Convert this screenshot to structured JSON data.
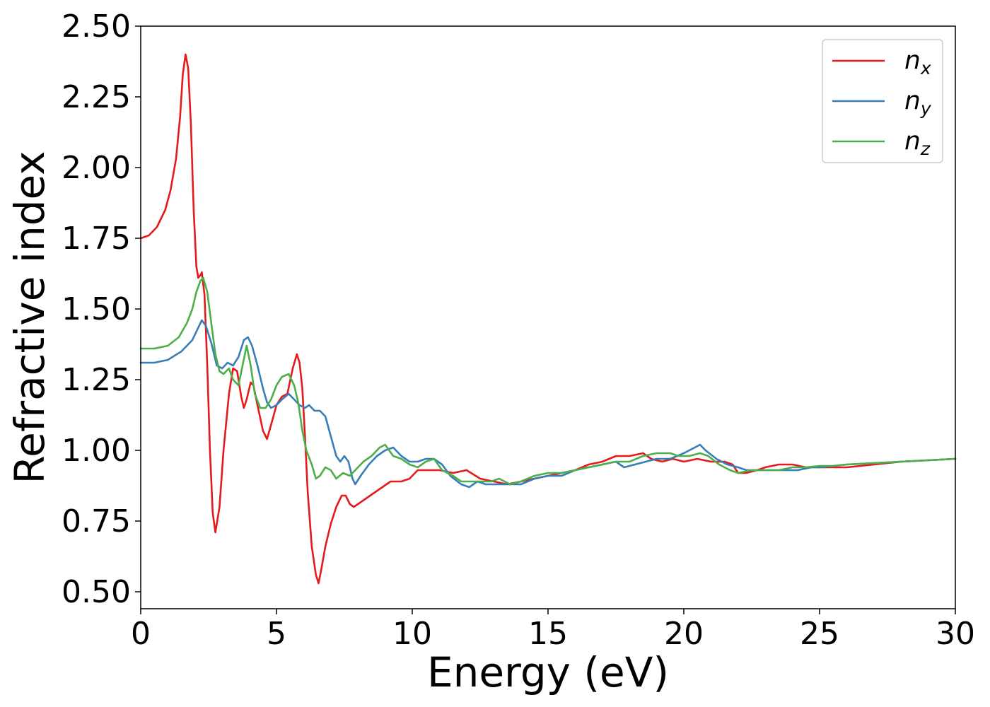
{
  "chart_data": {
    "type": "line",
    "title": "",
    "xlabel": "Energy (eV)",
    "ylabel": "Refractive index",
    "xlim": [
      0,
      30
    ],
    "ylim": [
      0.44,
      2.5
    ],
    "xticks": [
      0,
      5,
      10,
      15,
      20,
      25,
      30
    ],
    "xtick_labels": [
      "0",
      "5",
      "10",
      "15",
      "20",
      "25",
      "30"
    ],
    "yticks": [
      0.5,
      0.75,
      1.0,
      1.25,
      1.5,
      1.75,
      2.0,
      2.25,
      2.5
    ],
    "ytick_labels": [
      "0.50",
      "0.75",
      "1.00",
      "1.25",
      "1.50",
      "1.75",
      "2.00",
      "2.25",
      "2.50"
    ],
    "grid": false,
    "legend_position": "top-right",
    "series": [
      {
        "name": "n_x",
        "label_main": "n",
        "label_sub": "x",
        "color": "#e41a1c",
        "points": [
          [
            0,
            1.75
          ],
          [
            0.3,
            1.76
          ],
          [
            0.6,
            1.79
          ],
          [
            0.9,
            1.85
          ],
          [
            1.1,
            1.92
          ],
          [
            1.3,
            2.03
          ],
          [
            1.45,
            2.18
          ],
          [
            1.55,
            2.33
          ],
          [
            1.65,
            2.4
          ],
          [
            1.75,
            2.35
          ],
          [
            1.85,
            2.15
          ],
          [
            1.95,
            1.85
          ],
          [
            2.05,
            1.65
          ],
          [
            2.12,
            1.61
          ],
          [
            2.2,
            1.62
          ],
          [
            2.25,
            1.63
          ],
          [
            2.35,
            1.55
          ],
          [
            2.45,
            1.3
          ],
          [
            2.55,
            1.0
          ],
          [
            2.65,
            0.78
          ],
          [
            2.75,
            0.71
          ],
          [
            2.9,
            0.8
          ],
          [
            3.05,
            1.0
          ],
          [
            3.25,
            1.2
          ],
          [
            3.4,
            1.29
          ],
          [
            3.55,
            1.28
          ],
          [
            3.7,
            1.19
          ],
          [
            3.8,
            1.15
          ],
          [
            3.9,
            1.18
          ],
          [
            4.05,
            1.24
          ],
          [
            4.15,
            1.23
          ],
          [
            4.3,
            1.16
          ],
          [
            4.5,
            1.07
          ],
          [
            4.65,
            1.04
          ],
          [
            4.8,
            1.09
          ],
          [
            5.0,
            1.16
          ],
          [
            5.2,
            1.19
          ],
          [
            5.4,
            1.2
          ],
          [
            5.6,
            1.29
          ],
          [
            5.75,
            1.34
          ],
          [
            5.85,
            1.31
          ],
          [
            5.95,
            1.22
          ],
          [
            6.05,
            1.05
          ],
          [
            6.15,
            0.85
          ],
          [
            6.3,
            0.66
          ],
          [
            6.45,
            0.56
          ],
          [
            6.55,
            0.53
          ],
          [
            6.65,
            0.58
          ],
          [
            6.8,
            0.66
          ],
          [
            7.0,
            0.74
          ],
          [
            7.2,
            0.8
          ],
          [
            7.4,
            0.84
          ],
          [
            7.55,
            0.84
          ],
          [
            7.7,
            0.81
          ],
          [
            7.85,
            0.8
          ],
          [
            8.0,
            0.81
          ],
          [
            8.3,
            0.83
          ],
          [
            8.6,
            0.85
          ],
          [
            8.9,
            0.87
          ],
          [
            9.2,
            0.89
          ],
          [
            9.6,
            0.89
          ],
          [
            9.9,
            0.9
          ],
          [
            10.2,
            0.93
          ],
          [
            10.6,
            0.93
          ],
          [
            11.0,
            0.93
          ],
          [
            11.5,
            0.92
          ],
          [
            12.0,
            0.93
          ],
          [
            12.5,
            0.9
          ],
          [
            13.0,
            0.89
          ],
          [
            13.5,
            0.88
          ],
          [
            14.0,
            0.89
          ],
          [
            14.5,
            0.9
          ],
          [
            15.0,
            0.91
          ],
          [
            15.5,
            0.92
          ],
          [
            16.0,
            0.93
          ],
          [
            16.5,
            0.95
          ],
          [
            17.0,
            0.96
          ],
          [
            17.5,
            0.98
          ],
          [
            18.0,
            0.98
          ],
          [
            18.5,
            0.99
          ],
          [
            18.8,
            0.97
          ],
          [
            19.2,
            0.96
          ],
          [
            19.6,
            0.97
          ],
          [
            20.0,
            0.96
          ],
          [
            20.5,
            0.97
          ],
          [
            21.0,
            0.96
          ],
          [
            21.5,
            0.96
          ],
          [
            21.8,
            0.95
          ],
          [
            22.0,
            0.92
          ],
          [
            22.3,
            0.92
          ],
          [
            22.7,
            0.93
          ],
          [
            23.0,
            0.94
          ],
          [
            23.5,
            0.95
          ],
          [
            24.0,
            0.95
          ],
          [
            24.5,
            0.94
          ],
          [
            25.0,
            0.94
          ],
          [
            25.5,
            0.94
          ],
          [
            26.0,
            0.94
          ],
          [
            27.0,
            0.95
          ],
          [
            28.0,
            0.96
          ],
          [
            29.0,
            0.965
          ],
          [
            30.0,
            0.97
          ]
        ]
      },
      {
        "name": "n_y",
        "label_main": "n",
        "label_sub": "y",
        "color": "#377eb8",
        "points": [
          [
            0,
            1.31
          ],
          [
            0.5,
            1.31
          ],
          [
            1.0,
            1.32
          ],
          [
            1.5,
            1.35
          ],
          [
            1.9,
            1.39
          ],
          [
            2.1,
            1.43
          ],
          [
            2.25,
            1.46
          ],
          [
            2.4,
            1.44
          ],
          [
            2.6,
            1.38
          ],
          [
            2.8,
            1.3
          ],
          [
            3.0,
            1.29
          ],
          [
            3.2,
            1.31
          ],
          [
            3.4,
            1.3
          ],
          [
            3.6,
            1.33
          ],
          [
            3.8,
            1.39
          ],
          [
            3.95,
            1.4
          ],
          [
            4.1,
            1.37
          ],
          [
            4.3,
            1.3
          ],
          [
            4.5,
            1.22
          ],
          [
            4.65,
            1.17
          ],
          [
            4.8,
            1.15
          ],
          [
            5.0,
            1.16
          ],
          [
            5.2,
            1.18
          ],
          [
            5.45,
            1.2
          ],
          [
            5.65,
            1.18
          ],
          [
            5.85,
            1.16
          ],
          [
            6.05,
            1.15
          ],
          [
            6.2,
            1.16
          ],
          [
            6.4,
            1.14
          ],
          [
            6.6,
            1.14
          ],
          [
            6.8,
            1.12
          ],
          [
            7.0,
            1.05
          ],
          [
            7.2,
            0.98
          ],
          [
            7.35,
            0.96
          ],
          [
            7.5,
            0.98
          ],
          [
            7.65,
            0.96
          ],
          [
            7.8,
            0.9
          ],
          [
            7.9,
            0.88
          ],
          [
            8.1,
            0.91
          ],
          [
            8.4,
            0.95
          ],
          [
            8.7,
            0.98
          ],
          [
            9.0,
            1.0
          ],
          [
            9.3,
            1.01
          ],
          [
            9.6,
            0.98
          ],
          [
            9.9,
            0.96
          ],
          [
            10.2,
            0.96
          ],
          [
            10.5,
            0.97
          ],
          [
            10.8,
            0.97
          ],
          [
            11.1,
            0.95
          ],
          [
            11.4,
            0.91
          ],
          [
            11.8,
            0.88
          ],
          [
            12.1,
            0.87
          ],
          [
            12.4,
            0.89
          ],
          [
            12.7,
            0.88
          ],
          [
            13.0,
            0.88
          ],
          [
            13.5,
            0.88
          ],
          [
            14.0,
            0.88
          ],
          [
            14.5,
            0.9
          ],
          [
            15.0,
            0.91
          ],
          [
            15.5,
            0.91
          ],
          [
            16.0,
            0.93
          ],
          [
            16.5,
            0.94
          ],
          [
            17.0,
            0.95
          ],
          [
            17.5,
            0.96
          ],
          [
            17.8,
            0.94
          ],
          [
            18.2,
            0.95
          ],
          [
            18.6,
            0.96
          ],
          [
            19.0,
            0.97
          ],
          [
            19.5,
            0.97
          ],
          [
            20.0,
            0.99
          ],
          [
            20.4,
            1.01
          ],
          [
            20.6,
            1.02
          ],
          [
            20.8,
            1.0
          ],
          [
            21.2,
            0.97
          ],
          [
            21.6,
            0.95
          ],
          [
            22.0,
            0.94
          ],
          [
            22.3,
            0.93
          ],
          [
            22.7,
            0.93
          ],
          [
            23.2,
            0.93
          ],
          [
            23.7,
            0.93
          ],
          [
            24.2,
            0.93
          ],
          [
            24.7,
            0.94
          ],
          [
            25.0,
            0.94
          ],
          [
            25.5,
            0.945
          ],
          [
            26.0,
            0.95
          ],
          [
            27.0,
            0.955
          ],
          [
            28.0,
            0.96
          ],
          [
            29.0,
            0.965
          ],
          [
            30.0,
            0.97
          ]
        ]
      },
      {
        "name": "n_z",
        "label_main": "n",
        "label_sub": "z",
        "color": "#4daf4a",
        "points": [
          [
            0,
            1.36
          ],
          [
            0.5,
            1.36
          ],
          [
            1.0,
            1.37
          ],
          [
            1.4,
            1.4
          ],
          [
            1.7,
            1.45
          ],
          [
            1.9,
            1.5
          ],
          [
            2.05,
            1.56
          ],
          [
            2.2,
            1.6
          ],
          [
            2.3,
            1.61
          ],
          [
            2.45,
            1.56
          ],
          [
            2.6,
            1.45
          ],
          [
            2.75,
            1.34
          ],
          [
            2.9,
            1.28
          ],
          [
            3.05,
            1.27
          ],
          [
            3.25,
            1.29
          ],
          [
            3.4,
            1.25
          ],
          [
            3.6,
            1.23
          ],
          [
            3.75,
            1.3
          ],
          [
            3.9,
            1.37
          ],
          [
            4.05,
            1.3
          ],
          [
            4.2,
            1.2
          ],
          [
            4.4,
            1.15
          ],
          [
            4.6,
            1.15
          ],
          [
            4.8,
            1.18
          ],
          [
            5.0,
            1.23
          ],
          [
            5.2,
            1.26
          ],
          [
            5.45,
            1.27
          ],
          [
            5.65,
            1.23
          ],
          [
            5.8,
            1.17
          ],
          [
            5.95,
            1.07
          ],
          [
            6.1,
            1.0
          ],
          [
            6.3,
            0.95
          ],
          [
            6.45,
            0.9
          ],
          [
            6.6,
            0.91
          ],
          [
            6.8,
            0.94
          ],
          [
            7.0,
            0.93
          ],
          [
            7.2,
            0.9
          ],
          [
            7.45,
            0.92
          ],
          [
            7.7,
            0.91
          ],
          [
            7.9,
            0.93
          ],
          [
            8.2,
            0.96
          ],
          [
            8.5,
            0.98
          ],
          [
            8.8,
            1.01
          ],
          [
            9.0,
            1.02
          ],
          [
            9.3,
            0.98
          ],
          [
            9.6,
            0.97
          ],
          [
            9.9,
            0.95
          ],
          [
            10.2,
            0.94
          ],
          [
            10.5,
            0.96
          ],
          [
            10.8,
            0.97
          ],
          [
            11.1,
            0.93
          ],
          [
            11.5,
            0.91
          ],
          [
            11.8,
            0.89
          ],
          [
            12.2,
            0.89
          ],
          [
            12.6,
            0.89
          ],
          [
            12.9,
            0.89
          ],
          [
            13.2,
            0.9
          ],
          [
            13.6,
            0.88
          ],
          [
            14.0,
            0.89
          ],
          [
            14.5,
            0.91
          ],
          [
            15.0,
            0.92
          ],
          [
            15.5,
            0.92
          ],
          [
            16.0,
            0.93
          ],
          [
            16.5,
            0.94
          ],
          [
            17.0,
            0.95
          ],
          [
            17.5,
            0.96
          ],
          [
            18.0,
            0.96
          ],
          [
            18.5,
            0.98
          ],
          [
            19.0,
            0.99
          ],
          [
            19.5,
            0.99
          ],
          [
            19.8,
            0.98
          ],
          [
            20.2,
            0.98
          ],
          [
            20.6,
            0.99
          ],
          [
            20.9,
            0.98
          ],
          [
            21.3,
            0.95
          ],
          [
            21.7,
            0.93
          ],
          [
            22.0,
            0.92
          ],
          [
            22.5,
            0.93
          ],
          [
            23.0,
            0.93
          ],
          [
            23.5,
            0.93
          ],
          [
            24.0,
            0.94
          ],
          [
            24.5,
            0.94
          ],
          [
            25.0,
            0.945
          ],
          [
            25.5,
            0.945
          ],
          [
            26.0,
            0.95
          ],
          [
            27.0,
            0.955
          ],
          [
            28.0,
            0.96
          ],
          [
            29.0,
            0.965
          ],
          [
            30.0,
            0.97
          ]
        ]
      }
    ]
  }
}
